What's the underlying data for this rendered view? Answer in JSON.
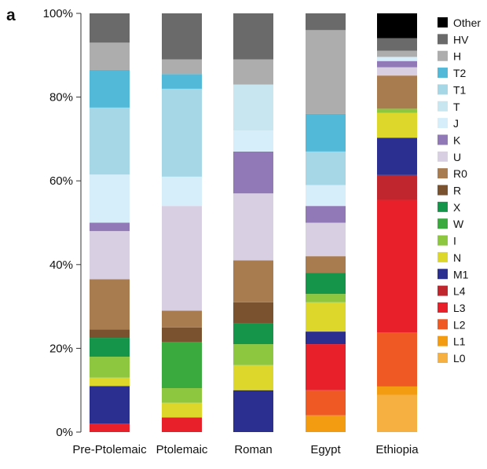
{
  "panel_label": "a",
  "colors": {
    "L0": "#f5b041",
    "L1": "#f39c12",
    "L2": "#ef5a24",
    "L3": "#e8202a",
    "L4": "#c0262d",
    "M1": "#2b2f8f",
    "N": "#dcd72a",
    "I": "#8dc63f",
    "W": "#3aaa3f",
    "X": "#14954a",
    "R": "#7a5230",
    "R0": "#a97c50",
    "U": "#d9cfe3",
    "K": "#9178b6",
    "J": "#d6eefa",
    "T": "#c8e6f0",
    "T1": "#a5d7e6",
    "T2": "#52b9d8",
    "H": "#adadad",
    "HV": "#6a6a6a",
    "Other": "#000000"
  },
  "chart_data": {
    "type": "bar",
    "stacked": true,
    "title": "",
    "xlabel": "",
    "ylabel": "",
    "ylim": [
      0,
      100
    ],
    "yticks": [
      "0%",
      "20%",
      "40%",
      "60%",
      "80%",
      "100%"
    ],
    "categories": [
      "Pre-Ptolemaic",
      "Ptolemaic",
      "Roman",
      "Egypt",
      "Ethiopia"
    ],
    "legend_position": "right",
    "legend": [
      "Other",
      "HV",
      "H",
      "T2",
      "T1",
      "T",
      "J",
      "K",
      "U",
      "R0",
      "R",
      "X",
      "W",
      "I",
      "N",
      "M1",
      "L4",
      "L3",
      "L2",
      "L1",
      "L0"
    ],
    "series": [
      {
        "name": "L0",
        "values": [
          0,
          0,
          0,
          0,
          9
        ]
      },
      {
        "name": "L1",
        "values": [
          0,
          0,
          0,
          4,
          2
        ]
      },
      {
        "name": "L2",
        "values": [
          0,
          0,
          0,
          6,
          13
        ]
      },
      {
        "name": "L3",
        "values": [
          2,
          3.5,
          0,
          11,
          32
        ]
      },
      {
        "name": "L4",
        "values": [
          0,
          0,
          0,
          0,
          6
        ]
      },
      {
        "name": "M1",
        "values": [
          9,
          0,
          10,
          3,
          9
        ]
      },
      {
        "name": "N",
        "values": [
          2,
          3.5,
          6,
          7,
          6
        ]
      },
      {
        "name": "I",
        "values": [
          5,
          3.5,
          5,
          2,
          1
        ]
      },
      {
        "name": "W",
        "values": [
          0,
          11,
          0,
          0,
          0
        ]
      },
      {
        "name": "X",
        "values": [
          4.5,
          0,
          5,
          5,
          0
        ]
      },
      {
        "name": "R",
        "values": [
          2,
          3.5,
          5,
          0,
          0
        ]
      },
      {
        "name": "R0",
        "values": [
          12,
          4,
          10,
          4,
          8
        ]
      },
      {
        "name": "U",
        "values": [
          11.5,
          25,
          16,
          8,
          2
        ]
      },
      {
        "name": "K",
        "values": [
          2,
          0,
          10,
          4,
          1.5
        ]
      },
      {
        "name": "J",
        "values": [
          11.5,
          7,
          5,
          5,
          1
        ]
      },
      {
        "name": "T",
        "values": [
          0,
          0,
          11,
          0,
          0
        ]
      },
      {
        "name": "T1",
        "values": [
          16,
          21,
          0,
          8,
          0
        ]
      },
      {
        "name": "T2",
        "values": [
          9,
          3.5,
          0,
          9,
          0
        ]
      },
      {
        "name": "H",
        "values": [
          6.5,
          3.5,
          6,
          20,
          1.5
        ]
      },
      {
        "name": "HV",
        "values": [
          7,
          11,
          11,
          4,
          3
        ]
      },
      {
        "name": "Other",
        "values": [
          0,
          0,
          0,
          0,
          6
        ]
      }
    ]
  }
}
